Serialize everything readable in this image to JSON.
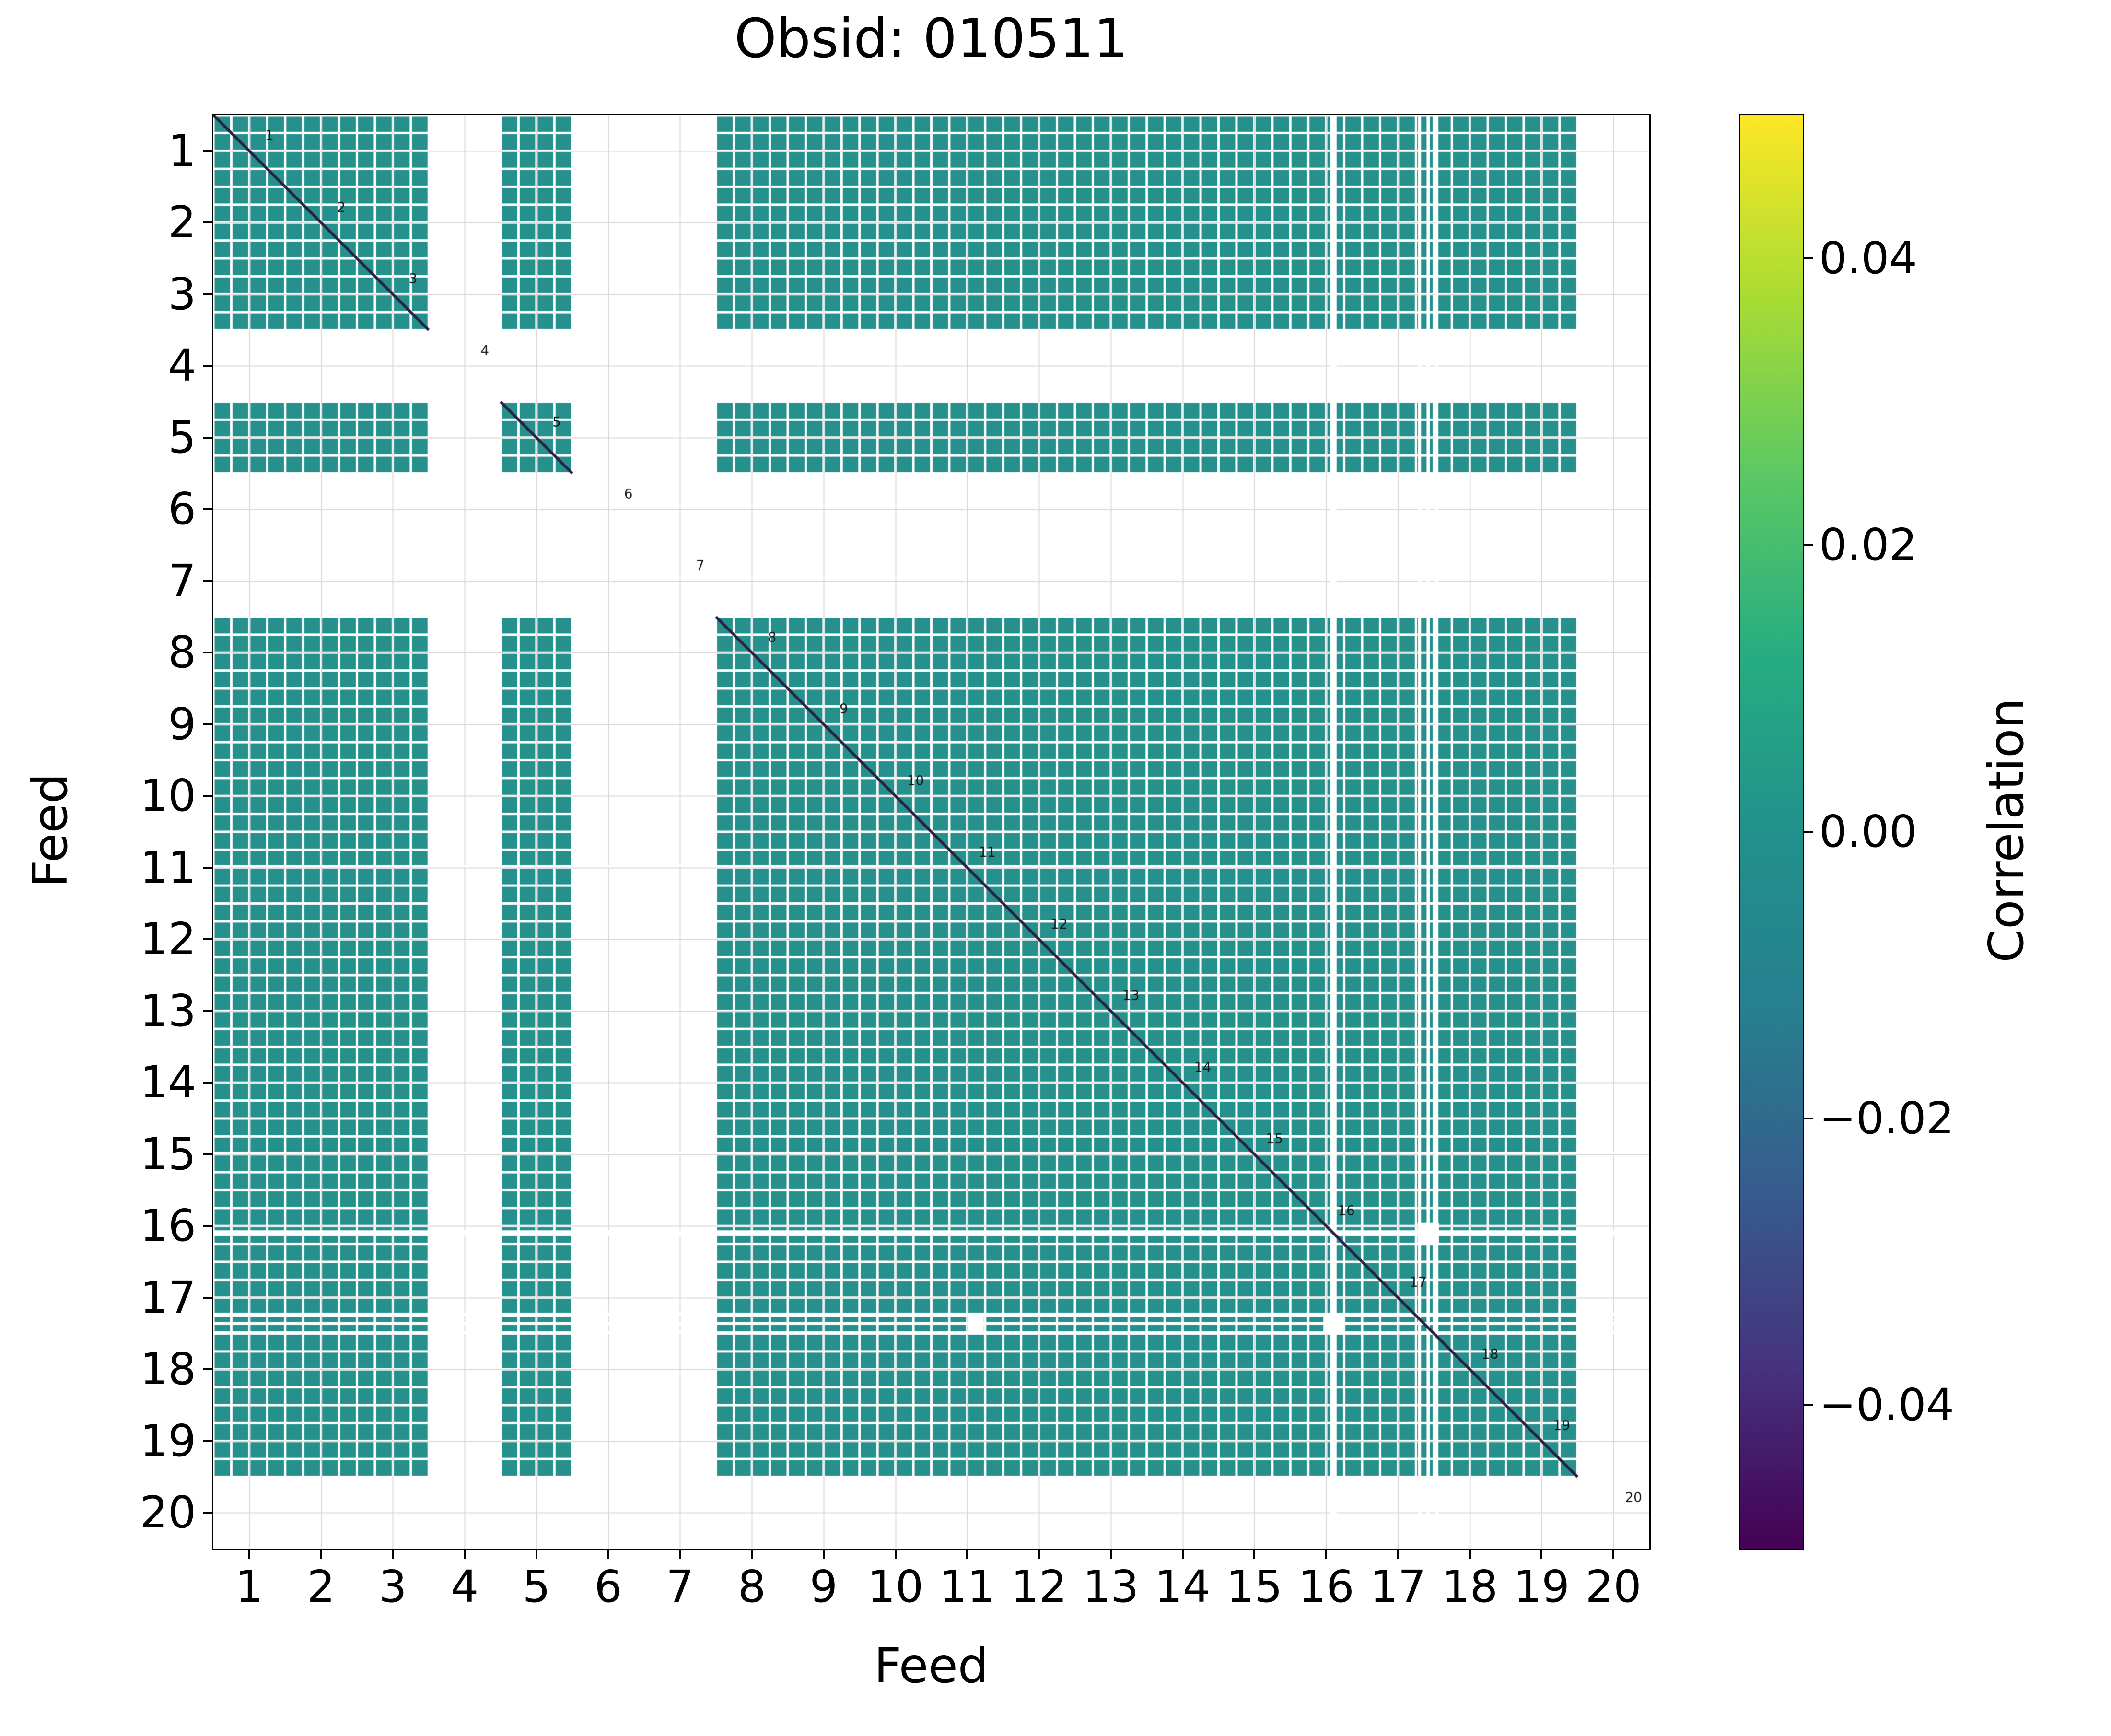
{
  "chart_data": {
    "type": "heatmap",
    "title": "Obsid: 010511",
    "xlabel": "Feed",
    "ylabel": "Feed",
    "n_feeds": 20,
    "bands_per_feed": 4,
    "extent": [
      0.5,
      20.5
    ],
    "x_tick_labels": [
      "1",
      "2",
      "3",
      "4",
      "5",
      "6",
      "7",
      "8",
      "9",
      "10",
      "11",
      "12",
      "13",
      "14",
      "15",
      "16",
      "17",
      "18",
      "19",
      "20"
    ],
    "y_tick_labels": [
      "1",
      "2",
      "3",
      "4",
      "5",
      "6",
      "7",
      "8",
      "9",
      "10",
      "11",
      "12",
      "13",
      "14",
      "15",
      "16",
      "17",
      "18",
      "19",
      "20"
    ],
    "feeds_present": [
      1,
      2,
      3,
      5,
      8,
      9,
      10,
      11,
      12,
      13,
      14,
      15,
      16,
      17,
      18,
      19
    ],
    "feeds_missing": [
      4,
      6,
      7,
      20
    ],
    "matrix_fill_value": 0.0,
    "diagonal_feed_labels": [
      "1",
      "2",
      "3",
      "4",
      "5",
      "6",
      "7",
      "8",
      "9",
      "10",
      "11",
      "12",
      "13",
      "14",
      "15",
      "16",
      "17",
      "18",
      "19",
      "20"
    ],
    "vmin": -0.05,
    "vmax": 0.05,
    "colormap": "viridis",
    "grid": true,
    "colorbar": {
      "label": "Correlation",
      "tick_values": [
        0.04,
        0.02,
        0.0,
        -0.02,
        -0.04
      ],
      "tick_labels": [
        "0.04",
        "0.02",
        "0.00",
        "−0.02",
        "−0.04"
      ]
    },
    "colors": {
      "cell_fill": "#26908c",
      "diagonal_line": "#262244",
      "grid": "#d8d8d8",
      "axes": "#000000",
      "viridis_stops": [
        "#440154",
        "#46327e",
        "#365c8d",
        "#277f8e",
        "#21918c",
        "#27ad81",
        "#5cc863",
        "#aadc32",
        "#fde725"
      ]
    },
    "artifacts": {
      "vertical_stripes": [
        {
          "pos": 15.6,
          "w": 0.09
        },
        {
          "pos": 16.8,
          "w": 0.045
        },
        {
          "pos": 16.92,
          "w": 0.045
        },
        {
          "pos": 17.04,
          "w": 0.045
        }
      ],
      "horizontal_stripes": [
        {
          "pos": 15.6,
          "w": 0.08
        },
        {
          "pos": 16.73,
          "w": 0.04
        },
        {
          "pos": 16.86,
          "w": 0.04
        },
        {
          "pos": 16.99,
          "w": 0.04
        },
        {
          "pos": 10.48,
          "w": 0.03
        },
        {
          "pos": 14.48,
          "w": 0.03
        }
      ],
      "white_squares": [
        {
          "x": 16.92,
          "y": 15.6,
          "s": 0.3
        },
        {
          "x": 15.6,
          "y": 16.86,
          "s": 0.28
        },
        {
          "x": 10.62,
          "y": 16.86,
          "s": 0.22
        }
      ]
    }
  }
}
